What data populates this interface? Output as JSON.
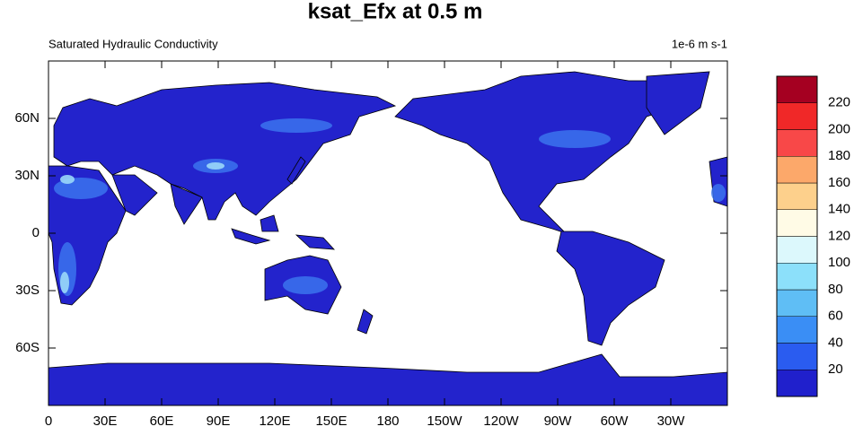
{
  "title": "ksat_Efx at 0.5 m",
  "left_string": "Saturated Hydraulic Conductivity",
  "right_string": "1e-6 m s-1",
  "lat_ticks": [
    {
      "value": 60,
      "label": "60N"
    },
    {
      "value": 30,
      "label": "30N"
    },
    {
      "value": 0,
      "label": "0"
    },
    {
      "value": -30,
      "label": "30S"
    },
    {
      "value": -60,
      "label": "60S"
    }
  ],
  "lon_ticks": [
    {
      "value": 0,
      "label": "0"
    },
    {
      "value": 30,
      "label": "30E"
    },
    {
      "value": 60,
      "label": "60E"
    },
    {
      "value": 90,
      "label": "90E"
    },
    {
      "value": 120,
      "label": "120E"
    },
    {
      "value": 150,
      "label": "150E"
    },
    {
      "value": 180,
      "label": "180"
    },
    {
      "value": 210,
      "label": "150W"
    },
    {
      "value": 240,
      "label": "120W"
    },
    {
      "value": 270,
      "label": "90W"
    },
    {
      "value": 300,
      "label": "60W"
    },
    {
      "value": 330,
      "label": "30W"
    }
  ],
  "colorbar": {
    "levels": [
      20,
      40,
      60,
      80,
      100,
      120,
      140,
      160,
      180,
      200,
      220
    ],
    "colors": [
      "#2020cc",
      "#2a5cf0",
      "#3a8ef5",
      "#5fbef5",
      "#8ce0fa",
      "#dcf8fc",
      "#fffbe6",
      "#fdd08c",
      "#fca86a",
      "#f84848",
      "#f02828",
      "#a50021"
    ]
  }
}
